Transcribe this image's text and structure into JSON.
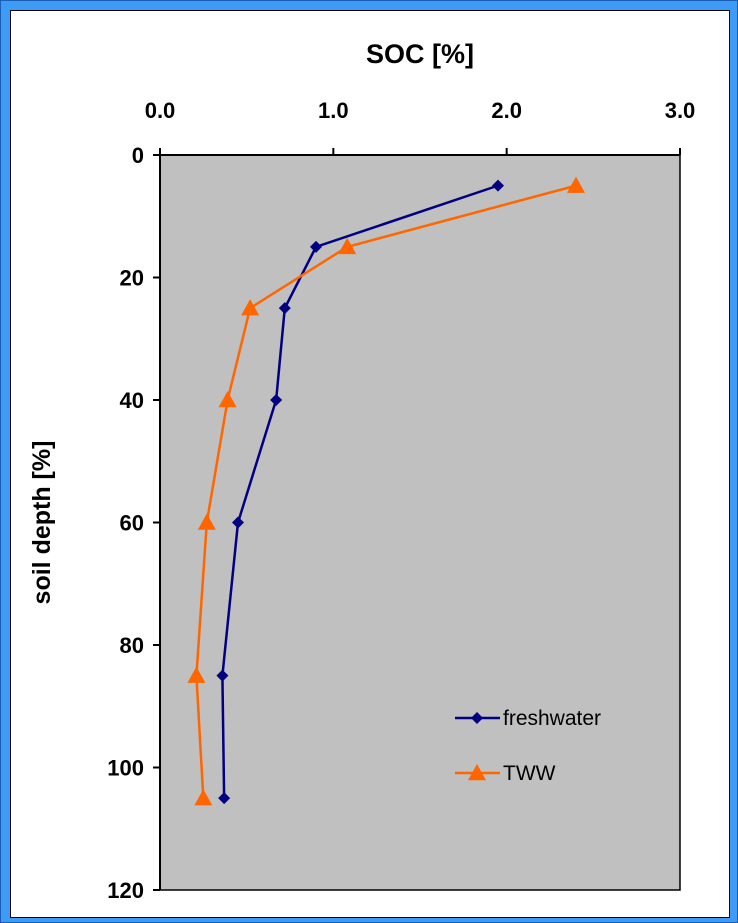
{
  "chart_data": {
    "type": "line",
    "title": "SOC [%]",
    "xlabel": "SOC [%]",
    "ylabel": "soil depth [%]",
    "x_axis_position": "top",
    "y_axis_inverted": true,
    "xlim": [
      0,
      3
    ],
    "ylim": [
      0,
      120
    ],
    "x_ticks": [
      "0.0",
      "1.0",
      "2.0",
      "3.0"
    ],
    "y_ticks": [
      "0",
      "20",
      "40",
      "60",
      "80",
      "100",
      "120"
    ],
    "grid": false,
    "plot_background": "#C0C0C0",
    "legend_position": "bottom-right",
    "series": [
      {
        "name": "freshwater",
        "color": "#000080",
        "marker": "diamond",
        "points": [
          {
            "x": 1.95,
            "y": 5
          },
          {
            "x": 0.9,
            "y": 15
          },
          {
            "x": 0.72,
            "y": 25
          },
          {
            "x": 0.67,
            "y": 40
          },
          {
            "x": 0.45,
            "y": 60
          },
          {
            "x": 0.36,
            "y": 85
          },
          {
            "x": 0.37,
            "y": 105
          }
        ]
      },
      {
        "name": "TWW",
        "color": "#FF6600",
        "marker": "triangle",
        "points": [
          {
            "x": 2.4,
            "y": 5
          },
          {
            "x": 1.08,
            "y": 15
          },
          {
            "x": 0.52,
            "y": 25
          },
          {
            "x": 0.39,
            "y": 40
          },
          {
            "x": 0.27,
            "y": 60
          },
          {
            "x": 0.21,
            "y": 85
          },
          {
            "x": 0.25,
            "y": 105
          }
        ]
      }
    ]
  }
}
